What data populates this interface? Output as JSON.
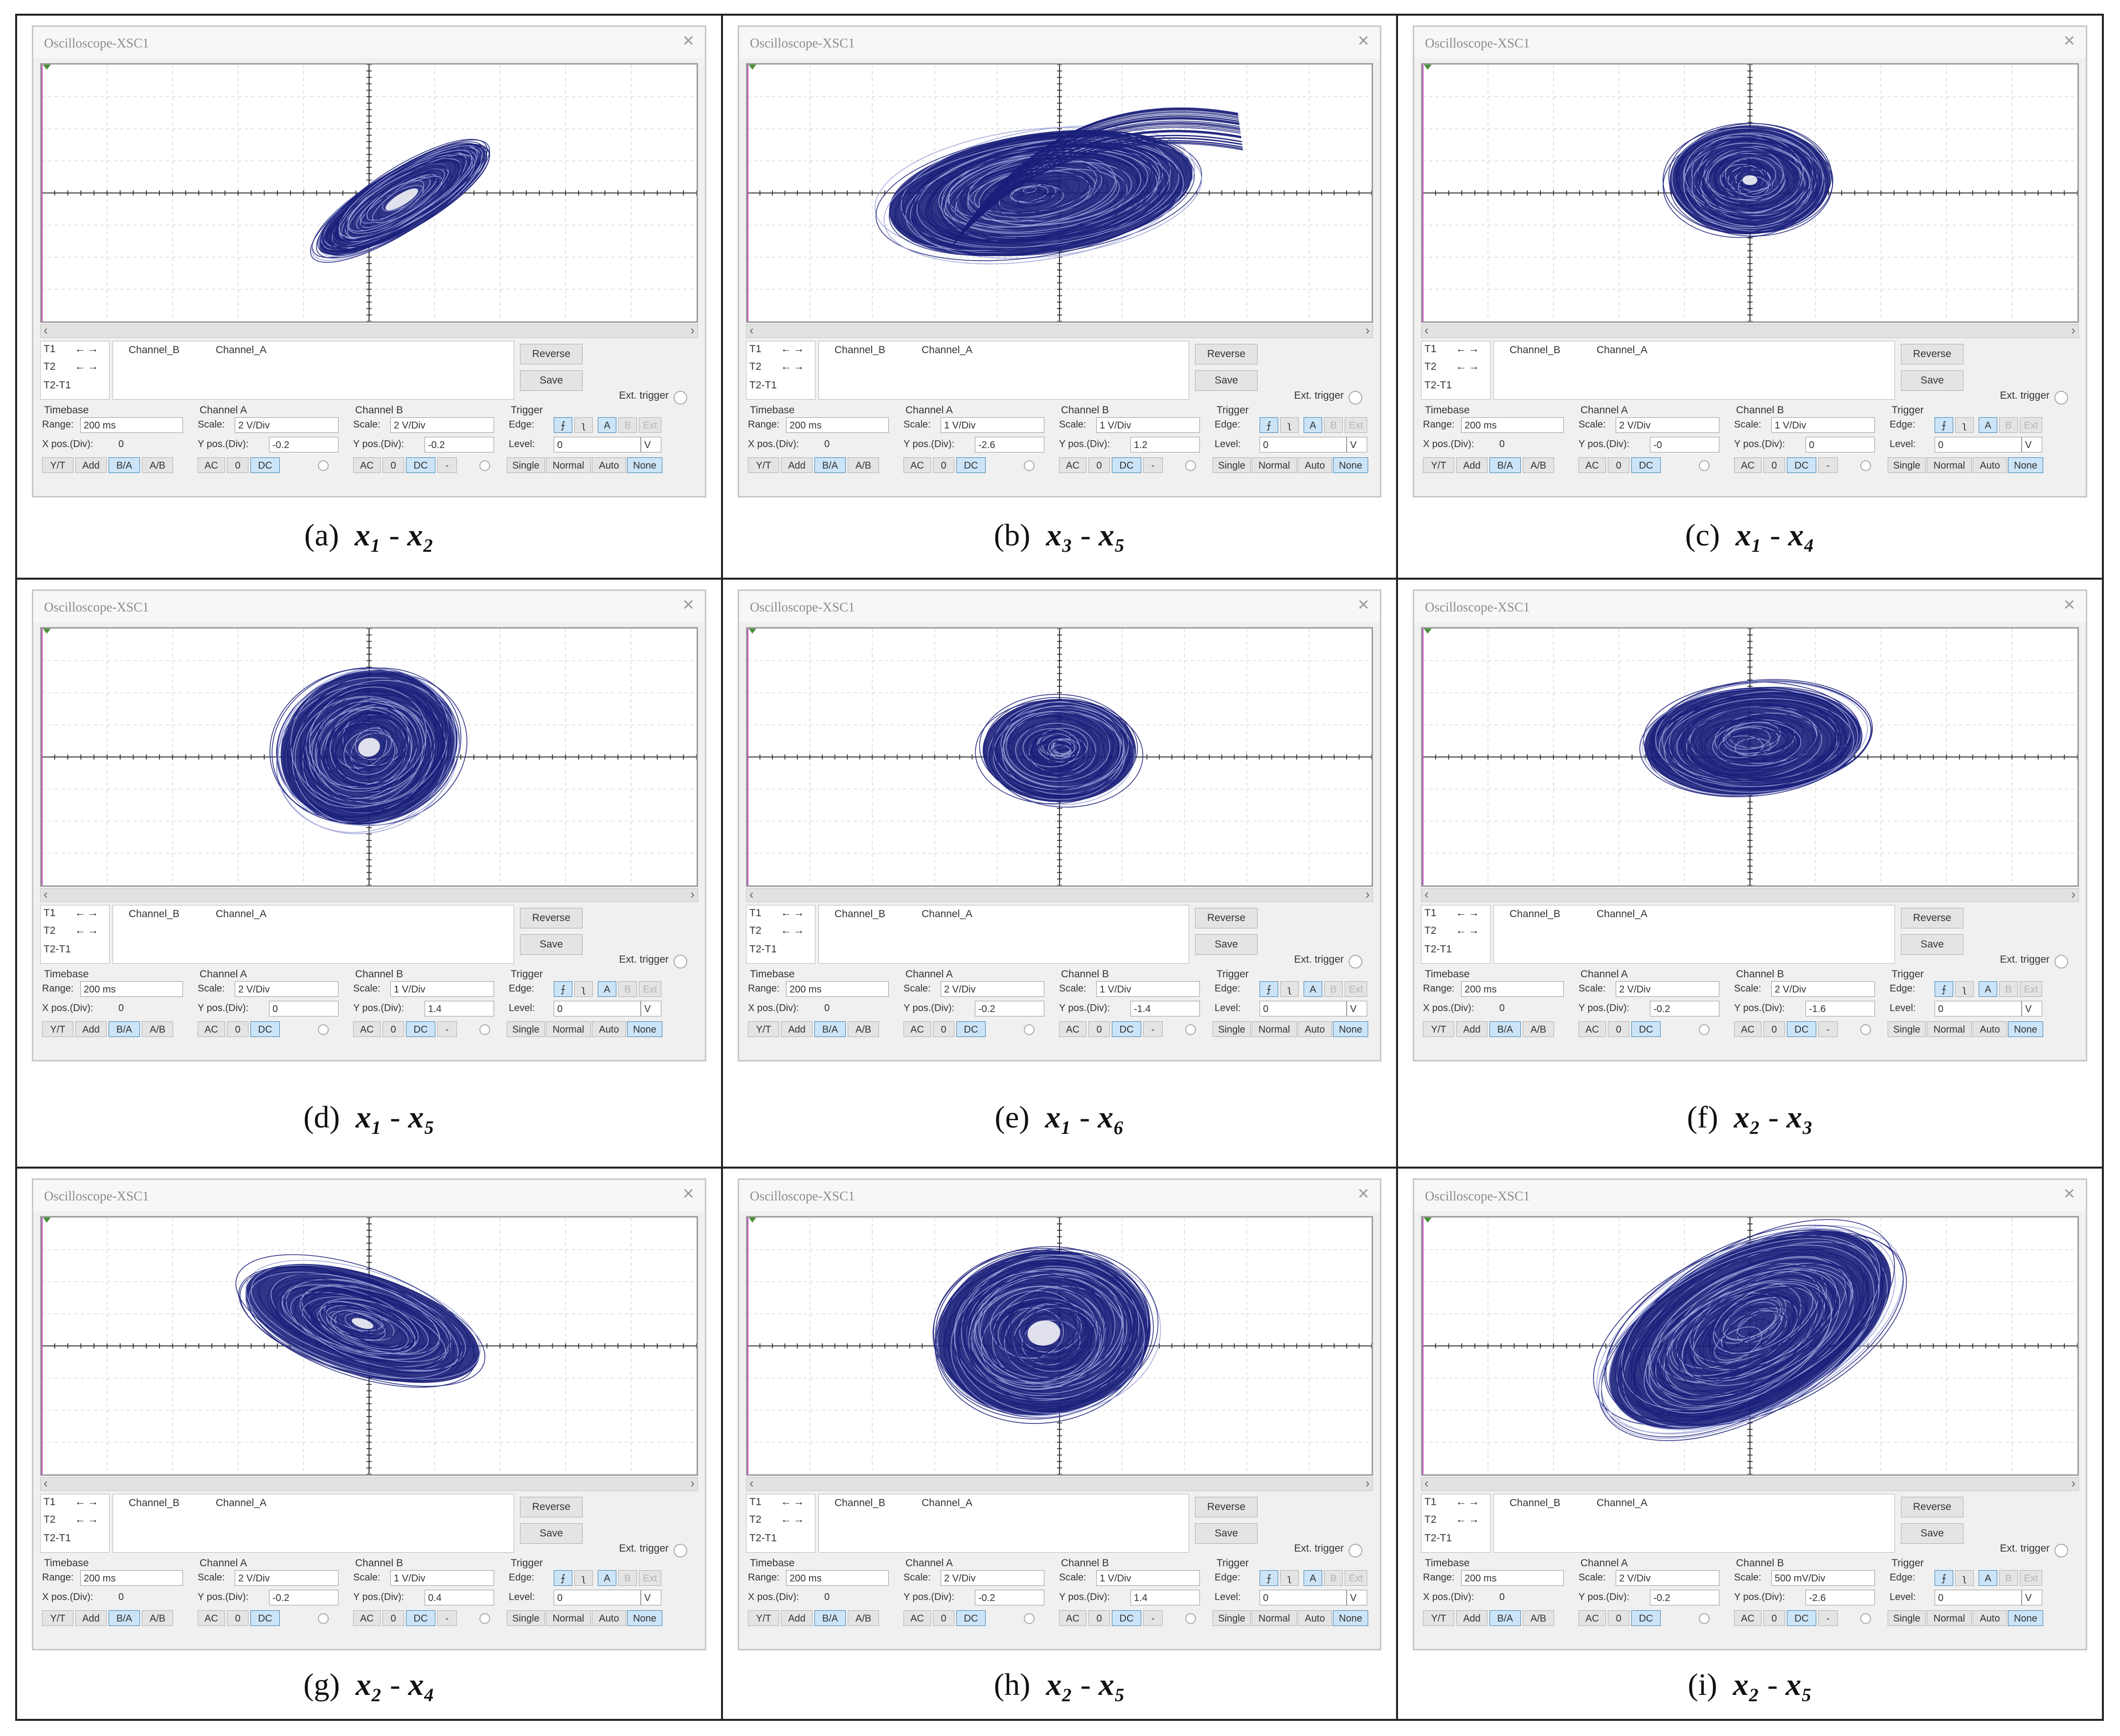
{
  "window_title": "Oscilloscope-XSC1",
  "close_glyph": "×",
  "panel": {
    "t1": "T1",
    "t2": "T2",
    "t2t1": "T2-T1",
    "arrows": "←→",
    "channel_b": "Channel_B",
    "channel_a": "Channel_A",
    "reverse": "Reverse",
    "save": "Save",
    "ext_trigger": "Ext. trigger",
    "timebase": "Timebase",
    "range_label": "Range:",
    "range_value": "200 ms",
    "xpos_label": "X pos.(Div):",
    "xpos_value": "0",
    "channel_a_title": "Channel A",
    "channel_b_title": "Channel B",
    "scale_label": "Scale:",
    "ypos_label": "Y pos.(Div):",
    "trigger": "Trigger",
    "edge_label": "Edge:",
    "level_label": "Level:",
    "level_value": "0",
    "level_unit": "V",
    "edge_rise": "⨍",
    "edge_fall": "ʅ",
    "edge_a": "A",
    "edge_b": "B",
    "edge_ext": "Ext",
    "yt": "Y/T",
    "add": "Add",
    "ba": "B/A",
    "ab": "A/B",
    "ac": "AC",
    "zero": "0",
    "dc": "DC",
    "minus": "-",
    "single": "Single",
    "normal": "Normal",
    "auto": "Auto",
    "none": "None"
  },
  "trace_color": "#1a1f7a",
  "panels": [
    {
      "id": "a",
      "caption_letter": "(a)",
      "var1": "x₁",
      "var2": "x₂",
      "a_scale": "2  V/Div",
      "a_ypos": "-0.2",
      "b_scale": "2  V/Div",
      "b_ypos": "-0.2",
      "shape": "a"
    },
    {
      "id": "b",
      "caption_letter": "(b)",
      "var1": "x₃",
      "var2": "x₅",
      "a_scale": "1  V/Div",
      "a_ypos": "-2.6",
      "b_scale": "1  V/Div",
      "b_ypos": "1.2",
      "shape": "b"
    },
    {
      "id": "c",
      "caption_letter": "(c)",
      "var1": "x₁",
      "var2": "x₄",
      "a_scale": "2  V/Div",
      "a_ypos": "-0",
      "b_scale": "1  V/Div",
      "b_ypos": "0",
      "shape": "c"
    },
    {
      "id": "d",
      "caption_letter": "(d)",
      "var1": "x₁",
      "var2": "x₅",
      "a_scale": "2  V/Div",
      "a_ypos": "0",
      "b_scale": "1  V/Div",
      "b_ypos": "1.4",
      "shape": "d"
    },
    {
      "id": "e",
      "caption_letter": "(e)",
      "var1": "x₁",
      "var2": "x₆",
      "a_scale": "2  V/Div",
      "a_ypos": "-0.2",
      "b_scale": "1  V/Div",
      "b_ypos": "-1.4",
      "shape": "e"
    },
    {
      "id": "f",
      "caption_letter": "(f)",
      "var1": "x₂",
      "var2": "x₃",
      "a_scale": "2  V/Div",
      "a_ypos": "-0.2",
      "b_scale": "2  V/Div",
      "b_ypos": "-1.6",
      "shape": "f"
    },
    {
      "id": "g",
      "caption_letter": "(g)",
      "var1": "x₂",
      "var2": "x₄",
      "a_scale": "2  V/Div",
      "a_ypos": "-0.2",
      "b_scale": "1  V/Div",
      "b_ypos": "0.4",
      "shape": "g"
    },
    {
      "id": "h",
      "caption_letter": "(h)",
      "var1": "x₂",
      "var2": "x₅",
      "a_scale": "2  V/Div",
      "a_ypos": "-0.2",
      "b_scale": "1  V/Div",
      "b_ypos": "1.4",
      "shape": "h"
    },
    {
      "id": "i",
      "caption_letter": "(i)",
      "var1": "x₂",
      "var2": "x₅",
      "a_scale": "2  V/Div",
      "a_ypos": "-0.2",
      "b_scale": "500 mV/Div",
      "b_ypos": "-2.6",
      "shape": "i"
    }
  ]
}
